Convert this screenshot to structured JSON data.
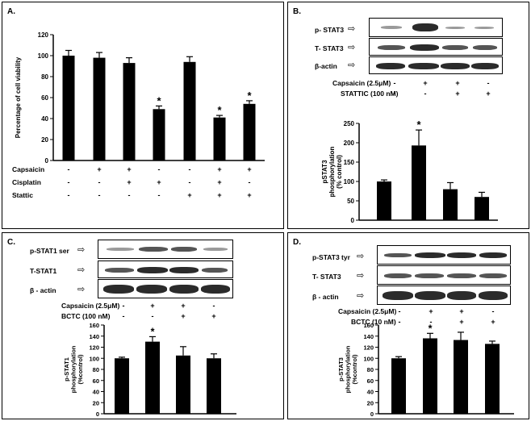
{
  "panels": {
    "A": {
      "label": "A.",
      "chart_data": {
        "type": "bar",
        "ylabel": "Percentage of cell viability",
        "ylim": [
          0,
          120
        ],
        "yticks": [
          0,
          20,
          40,
          60,
          80,
          100,
          120
        ],
        "values": [
          100,
          98,
          93,
          49,
          94,
          41,
          54
        ],
        "errors": [
          5,
          5,
          5,
          3,
          5,
          2,
          3
        ],
        "stars": [
          false,
          false,
          false,
          true,
          false,
          true,
          true
        ],
        "conditions": [
          {
            "name": "Capsaicin",
            "signs": [
              "-",
              "+",
              "+",
              "-",
              "-",
              "+",
              "+"
            ]
          },
          {
            "name": "Cisplatin",
            "signs": [
              "-",
              "-",
              "+",
              "+",
              "-",
              "+",
              "-"
            ]
          },
          {
            "name": "Stattic",
            "signs": [
              "-",
              "-",
              "-",
              "-",
              "+",
              "+",
              "+"
            ]
          }
        ]
      }
    },
    "B": {
      "label": "B.",
      "blots": [
        "p- STAT3",
        "T- STAT3",
        "β-actin"
      ],
      "treatments": [
        {
          "name": "Capsaicin (2.5μM)",
          "signs": [
            "-",
            "+",
            "+",
            "-"
          ]
        },
        {
          "name": "STATTIC (100 nM)",
          "signs": [
            "-",
            "-",
            "+",
            "+"
          ]
        }
      ],
      "chart_data": {
        "type": "bar",
        "ylabel": "pSTAT3 phosphorylation (% control)",
        "ylim": [
          0,
          250
        ],
        "yticks": [
          0,
          50,
          100,
          150,
          200,
          250
        ],
        "values": [
          100,
          193,
          80,
          60
        ],
        "errors": [
          4,
          40,
          17,
          12
        ],
        "stars": [
          false,
          true,
          false,
          false
        ]
      }
    },
    "C": {
      "label": "C.",
      "blots": [
        "p-STAT1 ser",
        "T-STAT1",
        "β - actin"
      ],
      "treatments": [
        {
          "name": "Capsaicin (2.5μM)",
          "signs": [
            "-",
            "+",
            "+",
            "-"
          ]
        },
        {
          "name": "BCTC (100 nM)",
          "signs": [
            "-",
            "-",
            "+",
            "+"
          ]
        }
      ],
      "chart_data": {
        "type": "bar",
        "ylabel": "p-STAT1 phosphorylation (%control)",
        "ylim": [
          0,
          160
        ],
        "yticks": [
          0,
          20,
          40,
          60,
          80,
          100,
          120,
          140,
          160
        ],
        "values": [
          100,
          130,
          105,
          100
        ],
        "errors": [
          2,
          9,
          16,
          8
        ],
        "stars": [
          false,
          true,
          false,
          false
        ]
      }
    },
    "D": {
      "label": "D.",
      "blots": [
        "p-STAT3 tyr",
        "T- STAT3",
        "β - actin"
      ],
      "treatments": [
        {
          "name": "Capsaicin (2.5μM)",
          "signs": [
            "-",
            "+",
            "+",
            "-"
          ]
        },
        {
          "name": "BCTC (10 nM)",
          "signs": [
            "-",
            "-",
            "+",
            "+"
          ]
        }
      ],
      "chart_data": {
        "type": "bar",
        "ylabel": "p-STAT3 phosphorylation (%control)",
        "ylim": [
          0,
          160
        ],
        "yticks": [
          0,
          20,
          40,
          60,
          80,
          100,
          120,
          140,
          160
        ],
        "values": [
          100,
          136,
          133,
          126
        ],
        "errors": [
          3,
          9,
          14,
          5
        ],
        "stars": [
          false,
          true,
          false,
          false
        ]
      }
    }
  }
}
